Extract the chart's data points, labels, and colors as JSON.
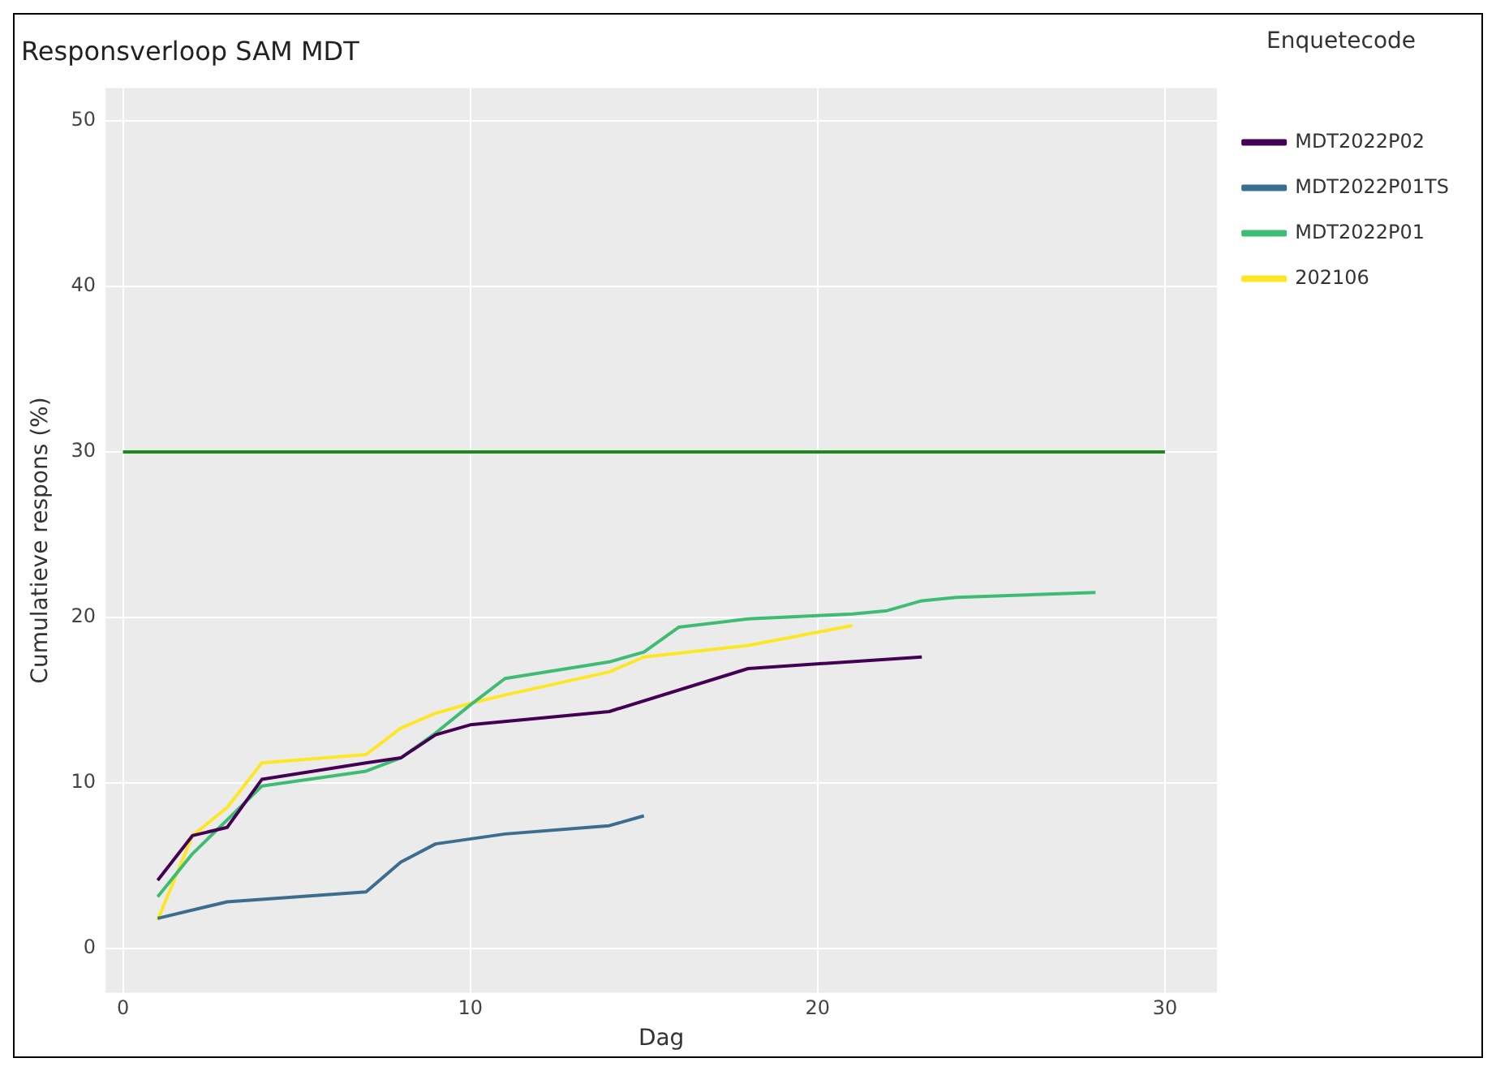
{
  "chart_data": {
    "type": "line",
    "title": "Responsverloop SAM MDT",
    "xlabel": "Dag",
    "ylabel": "Cumulatieve respons (%)",
    "legend_title": "Enquetecode",
    "xlim": [
      -0.5,
      31.5
    ],
    "xticks": [
      0,
      10,
      20,
      30
    ],
    "ylim": [
      -2.7,
      52
    ],
    "yticks": [
      0,
      10,
      20,
      30,
      40,
      50
    ],
    "grid": true,
    "legend": "top right",
    "series": [
      {
        "name": "MDT2022P02",
        "color": "#440154",
        "x": [
          1,
          2,
          3,
          4,
          7,
          8,
          9,
          10,
          14,
          18,
          23
        ],
        "values": [
          4.1,
          6.8,
          7.3,
          10.2,
          11.2,
          11.5,
          12.9,
          13.5,
          14.3,
          16.9,
          17.6
        ]
      },
      {
        "name": "MDT2022P01TS",
        "color": "#3b6d8f",
        "x": [
          1,
          3,
          7,
          8,
          9,
          11,
          14,
          15
        ],
        "values": [
          1.8,
          2.8,
          3.4,
          5.2,
          6.3,
          6.9,
          7.4,
          8.0
        ]
      },
      {
        "name": "MDT2022P01",
        "color": "#3fbc73",
        "x": [
          1,
          2,
          4,
          7,
          8,
          9,
          10,
          11,
          14,
          15,
          16,
          18,
          21,
          22,
          23,
          24,
          28
        ],
        "values": [
          3.1,
          5.7,
          9.8,
          10.7,
          11.5,
          13.0,
          14.7,
          16.3,
          17.3,
          17.9,
          19.4,
          19.9,
          20.2,
          20.4,
          21.0,
          21.2,
          21.5
        ]
      },
      {
        "name": "202106",
        "color": "#fde725",
        "x": [
          1,
          2,
          3,
          4,
          7,
          8,
          9,
          10,
          11,
          14,
          15,
          18,
          21
        ],
        "values": [
          1.7,
          6.8,
          8.5,
          11.2,
          11.7,
          13.3,
          14.2,
          14.8,
          15.3,
          16.7,
          17.6,
          18.3,
          19.5
        ]
      }
    ],
    "ref_lines": [
      {
        "axis": "y",
        "value": 30,
        "color": "#1a8a1a"
      }
    ]
  }
}
